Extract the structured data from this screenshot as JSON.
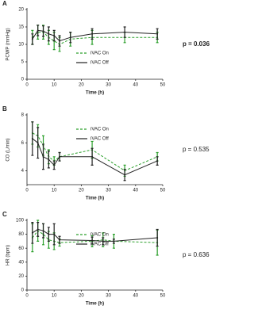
{
  "chart_data": [
    {
      "type": "line",
      "label": "A",
      "ylabel": "PCWP (mmHg)",
      "xlabel": "Time (h)",
      "annotation": "p = 0.036",
      "annotation_bold": true,
      "x": [
        2,
        4,
        6,
        8,
        10,
        12,
        16,
        24,
        36,
        48
      ],
      "series": [
        {
          "name": "iVAC On",
          "color": "#2ca02c",
          "dashed": true,
          "values": [
            12,
            13.5,
            13.5,
            12,
            11,
            10,
            11.5,
            12,
            12,
            12
          ],
          "errors": [
            2,
            2,
            2,
            2,
            2.5,
            2,
            2,
            2,
            1.5,
            1.5
          ]
        },
        {
          "name": "iVAC Off",
          "color": "#222222",
          "dashed": false,
          "values": [
            11.5,
            14,
            13.8,
            13,
            12.5,
            11,
            12,
            13,
            13.5,
            13
          ],
          "errors": [
            1.5,
            1.5,
            1.5,
            2,
            1.5,
            1.5,
            1.5,
            1.5,
            1.5,
            1.5
          ]
        }
      ],
      "xlim": [
        0,
        50
      ],
      "xticks": [
        0,
        10,
        20,
        30,
        40,
        50
      ],
      "ylim": [
        0,
        20
      ],
      "yticks": [
        0,
        5,
        10,
        15,
        20
      ],
      "legend": "center"
    },
    {
      "type": "line",
      "label": "B",
      "ylabel": "CO (L/min)",
      "xlabel": "Time (h)",
      "annotation": "p = 0.535",
      "annotation_bold": false,
      "x": [
        2,
        4,
        6,
        8,
        10,
        12,
        24,
        36,
        48
      ],
      "series": [
        {
          "name": "iVAC On",
          "color": "#2ca02c",
          "dashed": true,
          "values": [
            6.7,
            6.5,
            5.8,
            5.0,
            4.7,
            5.0,
            5.5,
            4.0,
            5.0
          ],
          "errors": [
            0.8,
            0.8,
            0.7,
            0.5,
            0.3,
            0.3,
            0.6,
            0.4,
            0.3
          ]
        },
        {
          "name": "iVAC Off",
          "color": "#222222",
          "dashed": false,
          "values": [
            6.3,
            6.0,
            5.0,
            4.8,
            4.4,
            5.0,
            5.0,
            3.7,
            4.7
          ],
          "errors": [
            1.2,
            1.1,
            0.9,
            0.6,
            0.3,
            0.3,
            0.6,
            0.4,
            0.3
          ]
        }
      ],
      "xlim": [
        0,
        50
      ],
      "xticks": [
        0,
        10,
        20,
        30,
        40,
        50
      ],
      "ylim": [
        3,
        8
      ],
      "yticks": [
        4,
        6,
        8
      ],
      "legend": "upper center"
    },
    {
      "type": "line",
      "label": "C",
      "ylabel": "HR (bpm)",
      "xlabel": "Time (h)",
      "annotation": "p = 0.636",
      "annotation_bold": false,
      "x": [
        2,
        4,
        6,
        8,
        10,
        12,
        24,
        28,
        32,
        48
      ],
      "series": [
        {
          "name": "iVAC On",
          "color": "#2ca02c",
          "dashed": true,
          "values": [
            75,
            85,
            80,
            72,
            70,
            68,
            70,
            72,
            70,
            68
          ],
          "errors": [
            20,
            15,
            15,
            12,
            12,
            5,
            8,
            10,
            10,
            18
          ]
        },
        {
          "name": "iVAC Off",
          "color": "#222222",
          "dashed": false,
          "values": [
            82,
            87,
            85,
            80,
            80,
            72,
            71,
            70,
            70,
            75
          ],
          "errors": [
            15,
            10,
            10,
            10,
            15,
            5,
            5,
            5,
            3,
            12
          ]
        }
      ],
      "xlim": [
        0,
        50
      ],
      "xticks": [
        0,
        10,
        20,
        30,
        40,
        50
      ],
      "ylim": [
        0,
        100
      ],
      "yticks": [
        0,
        20,
        40,
        60,
        80,
        100
      ],
      "legend": "upper center"
    }
  ]
}
